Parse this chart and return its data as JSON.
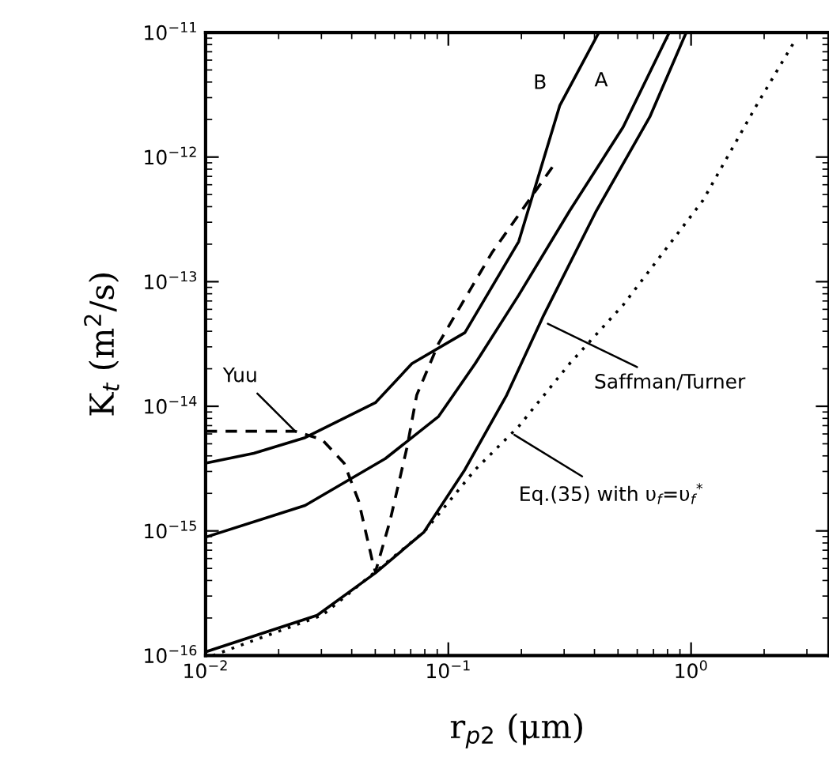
{
  "chart_data": {
    "type": "line",
    "xlabel": "r$_{p2}$ (μm)",
    "ylabel": "K$_{t}$ (m$^{2}$/s)",
    "log": "xy",
    "xlim": [
      0.01,
      3.7
    ],
    "ylim": [
      1e-16,
      1e-11
    ],
    "xticks": [
      {
        "value": 0.01,
        "label": "10$^{−2}$"
      },
      {
        "value": 0.1,
        "label": "10$^{−1}$"
      },
      {
        "value": 1,
        "label": "10$^{0}$"
      }
    ],
    "yticks": [
      {
        "value": 1e-16,
        "label": "10$^{−16}$"
      },
      {
        "value": 1e-15,
        "label": "10$^{−15}$"
      },
      {
        "value": 1e-14,
        "label": "10$^{−14}$"
      },
      {
        "value": 1e-13,
        "label": "10$^{−13}$"
      },
      {
        "value": 1e-12,
        "label": "10$^{−12}$"
      },
      {
        "value": 1e-11,
        "label": "10$^{−11}$"
      }
    ],
    "grid": false,
    "marker": "none",
    "series": [
      {
        "color": "#000000",
        "line_style": "solid",
        "x": [
          0.01,
          0.0158,
          0.0257,
          0.0501,
          0.0708,
          0.117,
          0.195,
          0.288,
          0.417
        ],
        "values": [
          3.5e-15,
          4.2e-15,
          5.6e-15,
          1.07e-14,
          2.2e-14,
          3.9e-14,
          2.1e-13,
          2.6e-12,
          1e-11
        ]
      },
      {
        "color": "#000000",
        "line_style": "solid",
        "x": [
          0.01,
          0.0257,
          0.055,
          0.0912,
          0.129,
          0.195,
          0.316,
          0.525,
          0.813
        ],
        "values": [
          8.9e-16,
          1.6e-15,
          3.8e-15,
          8.3e-15,
          2.2e-14,
          7.8e-14,
          3.7e-13,
          1.74e-12,
          1e-11
        ]
      },
      {
        "color": "#000000",
        "line_style": "solid",
        "x": [
          0.01,
          0.0288,
          0.0501,
          0.0794,
          0.117,
          0.174,
          0.245,
          0.407,
          0.676,
          0.955
        ],
        "values": [
          1.07e-16,
          2.1e-16,
          4.6e-16,
          9.8e-16,
          3.1e-15,
          1.23e-14,
          5.2e-14,
          3.7e-13,
          2.1e-12,
          1e-11
        ]
      },
      {
        "color": "#000000",
        "line_style": "dotted",
        "x": [
          0.0107,
          0.0302,
          0.0794,
          0.129,
          0.195,
          0.316,
          0.525,
          1.12,
          1.86,
          2.63
        ],
        "values": [
          1e-16,
          2.1e-16,
          9.8e-16,
          3.1e-15,
          6.9e-15,
          2.2e-14,
          6.5e-14,
          4.5e-13,
          2.6e-12,
          8.1e-12
        ]
      },
      {
        "color": "#000000",
        "line_style": "dashed",
        "x": [
          0.01,
          0.0234,
          0.0302,
          0.0372,
          0.0427,
          0.049,
          0.0501,
          0.0575,
          0.0676,
          0.0741,
          0.0912,
          0.151,
          0.275
        ],
        "values": [
          6.3e-15,
          6.3e-15,
          5.4e-15,
          3.5e-15,
          1.74e-15,
          5.4e-16,
          4.7e-16,
          1.2e-15,
          4.7e-15,
          1.23e-14,
          3.2e-14,
          1.7e-13,
          8.9e-13
        ]
      }
    ],
    "annotations": [
      {
        "text": "B",
        "x": 0.288,
        "y": 2.6e-12
      },
      {
        "text": "A",
        "x": 0.525,
        "y": 1.74e-12
      },
      {
        "text": "Yuu",
        "x": 0.0234,
        "y": 6.3e-15
      },
      {
        "text": "Saffman/Turner",
        "x": 0.257,
        "y": 4.6e-14
      },
      {
        "text": "Eq.(35) with υ$_{f}$=υ$_{f}$$^{*}$",
        "x": 0.187,
        "y": 5.9e-15
      }
    ]
  }
}
